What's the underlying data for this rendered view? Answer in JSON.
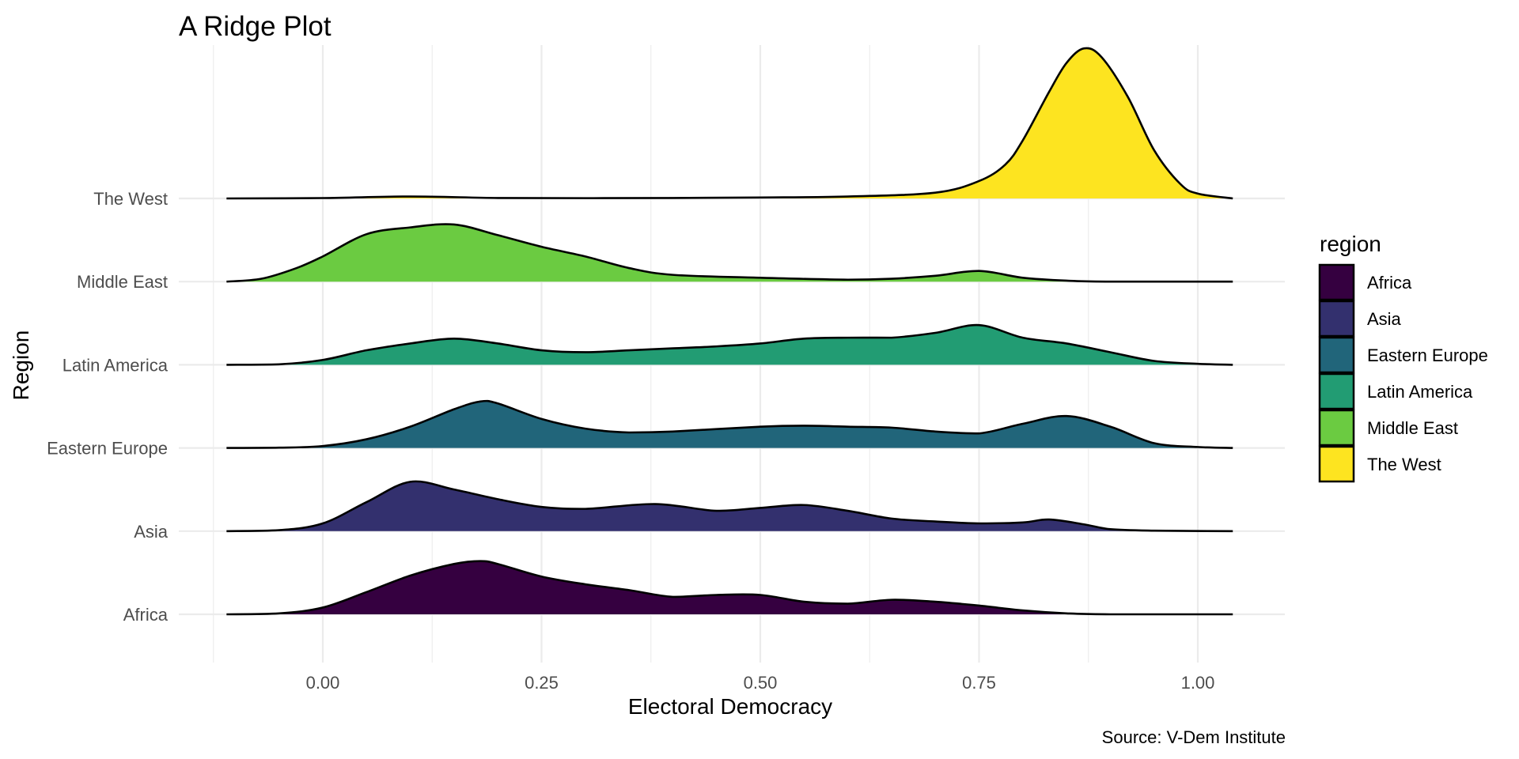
{
  "chart_data": {
    "type": "ridgeline",
    "title": "A Ridge Plot",
    "xlabel": "Electoral Democracy",
    "ylabel": "Region",
    "caption": "Source: V-Dem Institute",
    "xlim": [
      -0.11,
      1.04
    ],
    "x_ticks": [
      "0.00",
      "0.25",
      "0.50",
      "0.75",
      "1.00"
    ],
    "x_tick_values": [
      0,
      0.25,
      0.5,
      0.75,
      1.0
    ],
    "x_minor_values": [
      -0.125,
      0.125,
      0.375,
      0.625,
      0.875
    ],
    "grid": true,
    "legend": {
      "title": "region",
      "position": "right",
      "entries": [
        "Africa",
        "Asia",
        "Eastern Europe",
        "Latin America",
        "Middle East",
        "The West"
      ]
    },
    "density_note": "relative density heights",
    "series": [
      {
        "name": "Africa",
        "color": "#350040",
        "points": [
          [
            -0.11,
            0
          ],
          [
            -0.05,
            0.01
          ],
          [
            0,
            0.07
          ],
          [
            0.05,
            0.23
          ],
          [
            0.1,
            0.4
          ],
          [
            0.15,
            0.52
          ],
          [
            0.18,
            0.55
          ],
          [
            0.2,
            0.52
          ],
          [
            0.25,
            0.39
          ],
          [
            0.3,
            0.31
          ],
          [
            0.35,
            0.25
          ],
          [
            0.4,
            0.18
          ],
          [
            0.45,
            0.2
          ],
          [
            0.5,
            0.2
          ],
          [
            0.55,
            0.13
          ],
          [
            0.6,
            0.11
          ],
          [
            0.65,
            0.15
          ],
          [
            0.7,
            0.13
          ],
          [
            0.75,
            0.09
          ],
          [
            0.8,
            0.04
          ],
          [
            0.85,
            0.01
          ],
          [
            0.9,
            0
          ],
          [
            1.04,
            0
          ]
        ]
      },
      {
        "name": "Asia",
        "color": "#33306e",
        "points": [
          [
            -0.11,
            0
          ],
          [
            -0.05,
            0.01
          ],
          [
            0,
            0.08
          ],
          [
            0.05,
            0.3
          ],
          [
            0.1,
            0.51
          ],
          [
            0.15,
            0.43
          ],
          [
            0.2,
            0.33
          ],
          [
            0.25,
            0.25
          ],
          [
            0.3,
            0.23
          ],
          [
            0.38,
            0.28
          ],
          [
            0.45,
            0.21
          ],
          [
            0.5,
            0.24
          ],
          [
            0.55,
            0.27
          ],
          [
            0.6,
            0.21
          ],
          [
            0.65,
            0.13
          ],
          [
            0.7,
            0.1
          ],
          [
            0.75,
            0.08
          ],
          [
            0.8,
            0.09
          ],
          [
            0.83,
            0.12
          ],
          [
            0.87,
            0.07
          ],
          [
            0.9,
            0.02
          ],
          [
            0.95,
            0.005
          ],
          [
            1.04,
            0
          ]
        ]
      },
      {
        "name": "Eastern Europe",
        "color": "#21657a",
        "points": [
          [
            -0.11,
            0
          ],
          [
            -0.05,
            0.003
          ],
          [
            0,
            0.02
          ],
          [
            0.05,
            0.09
          ],
          [
            0.1,
            0.22
          ],
          [
            0.15,
            0.4
          ],
          [
            0.18,
            0.48
          ],
          [
            0.2,
            0.46
          ],
          [
            0.25,
            0.3
          ],
          [
            0.3,
            0.2
          ],
          [
            0.35,
            0.16
          ],
          [
            0.4,
            0.17
          ],
          [
            0.5,
            0.22
          ],
          [
            0.55,
            0.23
          ],
          [
            0.6,
            0.22
          ],
          [
            0.65,
            0.21
          ],
          [
            0.7,
            0.17
          ],
          [
            0.75,
            0.15
          ],
          [
            0.8,
            0.25
          ],
          [
            0.85,
            0.33
          ],
          [
            0.9,
            0.22
          ],
          [
            0.95,
            0.05
          ],
          [
            1.0,
            0.01
          ],
          [
            1.04,
            0
          ]
        ]
      },
      {
        "name": "Latin America",
        "color": "#229c73",
        "points": [
          [
            -0.11,
            0
          ],
          [
            -0.05,
            0.005
          ],
          [
            0,
            0.05
          ],
          [
            0.05,
            0.15
          ],
          [
            0.1,
            0.22
          ],
          [
            0.15,
            0.27
          ],
          [
            0.2,
            0.22
          ],
          [
            0.25,
            0.15
          ],
          [
            0.3,
            0.13
          ],
          [
            0.35,
            0.15
          ],
          [
            0.4,
            0.17
          ],
          [
            0.45,
            0.19
          ],
          [
            0.5,
            0.22
          ],
          [
            0.55,
            0.27
          ],
          [
            0.6,
            0.28
          ],
          [
            0.65,
            0.28
          ],
          [
            0.7,
            0.33
          ],
          [
            0.75,
            0.41
          ],
          [
            0.8,
            0.28
          ],
          [
            0.85,
            0.22
          ],
          [
            0.9,
            0.13
          ],
          [
            0.95,
            0.04
          ],
          [
            1.0,
            0.01
          ],
          [
            1.04,
            0
          ]
        ]
      },
      {
        "name": "Middle East",
        "color": "#6bcb41",
        "points": [
          [
            -0.11,
            0
          ],
          [
            -0.07,
            0.03
          ],
          [
            -0.03,
            0.14
          ],
          [
            0,
            0.26
          ],
          [
            0.05,
            0.49
          ],
          [
            0.1,
            0.56
          ],
          [
            0.15,
            0.59
          ],
          [
            0.2,
            0.48
          ],
          [
            0.25,
            0.36
          ],
          [
            0.3,
            0.26
          ],
          [
            0.35,
            0.14
          ],
          [
            0.4,
            0.07
          ],
          [
            0.5,
            0.04
          ],
          [
            0.6,
            0.02
          ],
          [
            0.65,
            0.03
          ],
          [
            0.7,
            0.06
          ],
          [
            0.75,
            0.11
          ],
          [
            0.8,
            0.04
          ],
          [
            0.85,
            0.01
          ],
          [
            0.9,
            0
          ],
          [
            1.04,
            0
          ]
        ]
      },
      {
        "name": "The West",
        "color": "#fde420",
        "points": [
          [
            -0.11,
            0
          ],
          [
            0,
            0.004
          ],
          [
            0.1,
            0.02
          ],
          [
            0.2,
            0.005
          ],
          [
            0.3,
            0.003
          ],
          [
            0.4,
            0.005
          ],
          [
            0.5,
            0.01
          ],
          [
            0.6,
            0.02
          ],
          [
            0.7,
            0.06
          ],
          [
            0.75,
            0.18
          ],
          [
            0.78,
            0.35
          ],
          [
            0.8,
            0.6
          ],
          [
            0.83,
            1.1
          ],
          [
            0.85,
            1.4
          ],
          [
            0.87,
            1.55
          ],
          [
            0.89,
            1.46
          ],
          [
            0.92,
            1.05
          ],
          [
            0.95,
            0.5
          ],
          [
            0.98,
            0.15
          ],
          [
            1.0,
            0.05
          ],
          [
            1.04,
            0
          ]
        ]
      }
    ]
  }
}
